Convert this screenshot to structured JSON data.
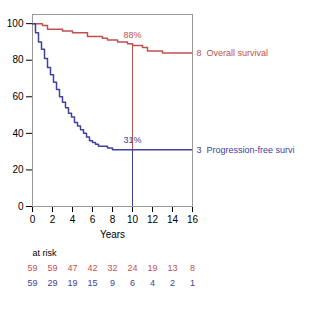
{
  "chart_data": {
    "type": "line",
    "line_style": "step",
    "xlabel": "Years",
    "xlim": [
      0,
      16
    ],
    "ylim": [
      0,
      105
    ],
    "xticks": [
      0,
      2,
      4,
      6,
      8,
      10,
      12,
      14,
      16
    ],
    "yticks": [
      0,
      20,
      40,
      60,
      80,
      100
    ],
    "grid": false,
    "series": [
      {
        "name": "Overall survival",
        "color": "#c0504d",
        "x": [
          0,
          1.0,
          1.5,
          2.0,
          3.0,
          4.0,
          5.0,
          5.5,
          6.0,
          7.0,
          7.5,
          8.0,
          8.5,
          9.0,
          9.5,
          10.0,
          11.0,
          11.5,
          12.0,
          13.0,
          14.0,
          16.0
        ],
        "values": [
          100,
          99,
          97,
          97,
          96,
          95,
          95,
          93,
          93,
          92,
          91,
          91,
          90,
          90,
          89,
          88,
          87,
          85,
          85,
          84,
          84,
          84
        ],
        "annotation": {
          "x": 10.0,
          "value": 88,
          "label": "88%"
        },
        "end_label": "8"
      },
      {
        "name": "Progression-free survi",
        "color": "#4040a0",
        "x": [
          0,
          0.3,
          0.6,
          0.9,
          1.2,
          1.5,
          1.8,
          2.1,
          2.4,
          2.7,
          3.0,
          3.3,
          3.6,
          3.9,
          4.2,
          4.5,
          4.8,
          5.1,
          5.4,
          5.7,
          6.0,
          6.3,
          6.6,
          7.0,
          7.5,
          8.0,
          8.5,
          9.0,
          10.0,
          16.0
        ],
        "values": [
          100,
          95,
          90,
          86,
          81,
          76,
          72,
          68,
          64,
          60,
          57,
          54,
          51,
          49,
          46,
          44,
          42,
          40,
          38,
          36,
          35,
          34,
          33,
          33,
          32,
          31,
          31,
          31,
          31,
          31
        ],
        "annotation": {
          "x": 10.0,
          "value": 31,
          "label": "31%"
        },
        "end_label": "3"
      }
    ],
    "at_risk": {
      "label": "at risk",
      "x": [
        0,
        2,
        4,
        6,
        8,
        10,
        12,
        14,
        16
      ],
      "counts": [
        [
          59,
          59,
          47,
          42,
          32,
          24,
          19,
          13,
          8
        ],
        [
          59,
          29,
          19,
          15,
          9,
          6,
          4,
          2,
          1
        ]
      ]
    }
  }
}
